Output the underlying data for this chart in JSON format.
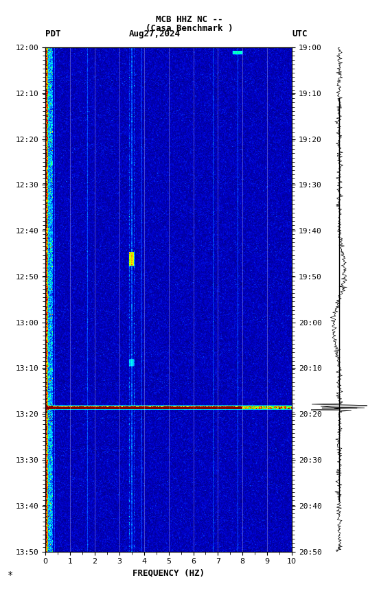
{
  "title_line1": "MCB HHZ NC --",
  "title_line2": "(Casa Benchmark )",
  "date_label": "Aug27,2024",
  "left_tz": "PDT",
  "right_tz": "UTC",
  "left_times": [
    "12:00",
    "12:10",
    "12:20",
    "12:30",
    "12:40",
    "12:50",
    "13:00",
    "13:10",
    "13:20",
    "13:30",
    "13:40",
    "13:50"
  ],
  "right_times": [
    "19:00",
    "19:10",
    "19:20",
    "19:30",
    "19:40",
    "19:50",
    "20:00",
    "20:10",
    "20:20",
    "20:30",
    "20:40",
    "20:50"
  ],
  "freq_min": 0,
  "freq_max": 10,
  "freq_ticks": [
    0,
    1,
    2,
    3,
    4,
    5,
    6,
    7,
    8,
    9,
    10
  ],
  "xlabel": "FREQUENCY (HZ)",
  "n_time": 720,
  "n_freq": 500,
  "bg_color": "white",
  "seed": 42
}
